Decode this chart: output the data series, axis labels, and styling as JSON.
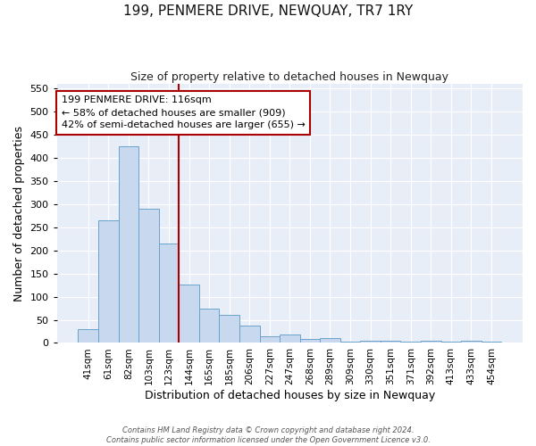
{
  "title": "199, PENMERE DRIVE, NEWQUAY, TR7 1RY",
  "subtitle": "Size of property relative to detached houses in Newquay",
  "xlabel": "Distribution of detached houses by size in Newquay",
  "ylabel": "Number of detached properties",
  "bar_labels": [
    "41sqm",
    "61sqm",
    "82sqm",
    "103sqm",
    "123sqm",
    "144sqm",
    "165sqm",
    "185sqm",
    "206sqm",
    "227sqm",
    "247sqm",
    "268sqm",
    "289sqm",
    "309sqm",
    "330sqm",
    "351sqm",
    "371sqm",
    "392sqm",
    "413sqm",
    "433sqm",
    "454sqm"
  ],
  "bar_values": [
    30,
    265,
    425,
    290,
    215,
    127,
    75,
    60,
    38,
    15,
    18,
    8,
    10,
    3,
    5,
    5,
    3,
    5,
    3,
    5,
    3
  ],
  "bar_color": "#c8d8ee",
  "bar_edgecolor": "#6aa3cc",
  "vline_color": "#aa0000",
  "vline_x": 4.5,
  "annotation_text": "199 PENMERE DRIVE: 116sqm\n← 58% of detached houses are smaller (909)\n42% of semi-detached houses are larger (655) →",
  "annotation_box_color": "#ffffff",
  "annotation_box_edgecolor": "#aa0000",
  "ylim": [
    0,
    560
  ],
  "yticks": [
    0,
    50,
    100,
    150,
    200,
    250,
    300,
    350,
    400,
    450,
    500,
    550
  ],
  "footer_line1": "Contains HM Land Registry data © Crown copyright and database right 2024.",
  "footer_line2": "Contains public sector information licensed under the Open Government Licence v3.0.",
  "plot_background": "#e8eef8",
  "grid_color": "#ffffff",
  "fig_background": "#ffffff"
}
